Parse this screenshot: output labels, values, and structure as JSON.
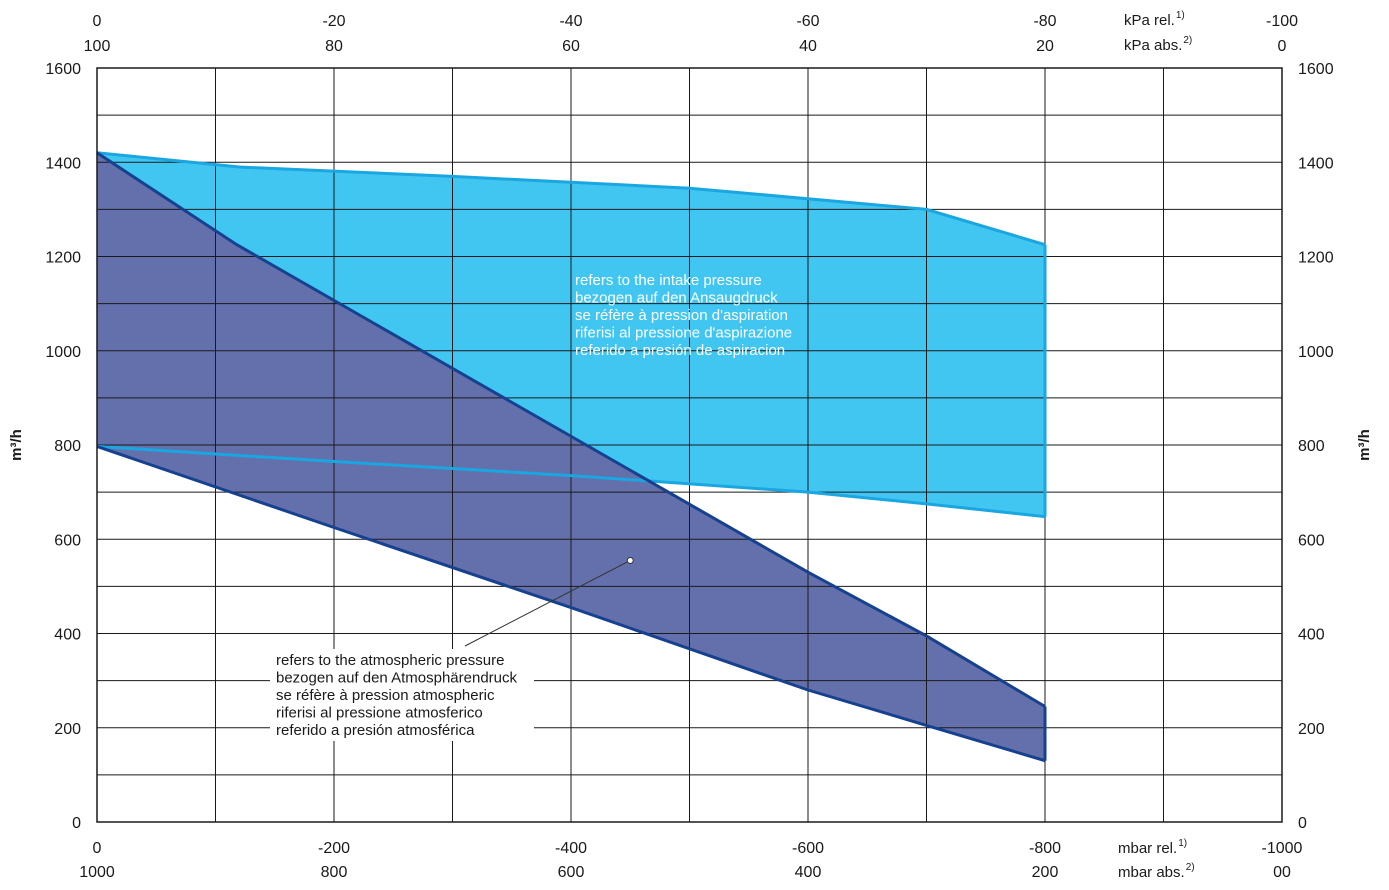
{
  "chart_data": {
    "type": "area",
    "x": [
      0,
      -100,
      -200,
      -300,
      -400,
      -500,
      -600,
      -700,
      -800,
      -900,
      -1000
    ],
    "xlim": [
      0,
      -1000
    ],
    "ylim": [
      0,
      1600
    ],
    "ylabel": "m³/h",
    "yticks": [
      "0",
      "200",
      "400",
      "600",
      "800",
      "1000",
      "1200",
      "1400",
      "1600"
    ],
    "axes": {
      "bottom_rel": {
        "ticks": [
          "0",
          "-200",
          "-400",
          "-600",
          "-800",
          "-1000"
        ],
        "unit": "mbar rel.",
        "note": "1)"
      },
      "bottom_abs": {
        "ticks": [
          "1000",
          "800",
          "600",
          "400",
          "200",
          "00"
        ],
        "unit": "mbar abs.",
        "note": "2)"
      },
      "top_rel": {
        "ticks": [
          "0",
          "-20",
          "-40",
          "-60",
          "-80",
          "-100"
        ],
        "unit": "kPa rel.",
        "note": "1)"
      },
      "top_abs": {
        "ticks": [
          "100",
          "80",
          "60",
          "40",
          "20",
          "0"
        ],
        "unit": "kPa abs.",
        "note": "2)"
      }
    },
    "series": [
      {
        "color": "#41c6f2",
        "edge_color": "#1aa6e0",
        "upper": [
          [
            0,
            1420
          ],
          [
            -120,
            1390
          ],
          [
            -300,
            1370
          ],
          [
            -500,
            1345
          ],
          [
            -700,
            1300
          ],
          [
            -800,
            1225
          ]
        ],
        "lower": [
          [
            0,
            797
          ],
          [
            -200,
            765
          ],
          [
            -400,
            735
          ],
          [
            -600,
            700
          ],
          [
            -700,
            675
          ],
          [
            -800,
            648
          ]
        ],
        "annotation": [
          "refers to the intake pressure",
          "bezogen auf den Ansaugdruck",
          "se réfère à pression d'aspiration",
          "riferisi al pressione d'aspirazione",
          "referido a presión de aspiracion"
        ]
      },
      {
        "color": "#6470ac",
        "edge_color": "#16418f",
        "upper": [
          [
            0,
            1420
          ],
          [
            -118,
            1225
          ],
          [
            -600,
            530
          ],
          [
            -700,
            395
          ],
          [
            -800,
            245
          ]
        ],
        "lower": [
          [
            0,
            797
          ],
          [
            -200,
            625
          ],
          [
            -400,
            455
          ],
          [
            -600,
            280
          ],
          [
            -700,
            205
          ],
          [
            -800,
            130
          ]
        ],
        "annotation": [
          "refers to the atmospheric pressure",
          "bezogen auf den Atmosphärendruck",
          "se réfère à pression atmospheric",
          "riferisi al pressione atmosferico",
          "referido a presión atmosférica"
        ],
        "leader_point": [
          -450,
          555
        ]
      }
    ]
  }
}
